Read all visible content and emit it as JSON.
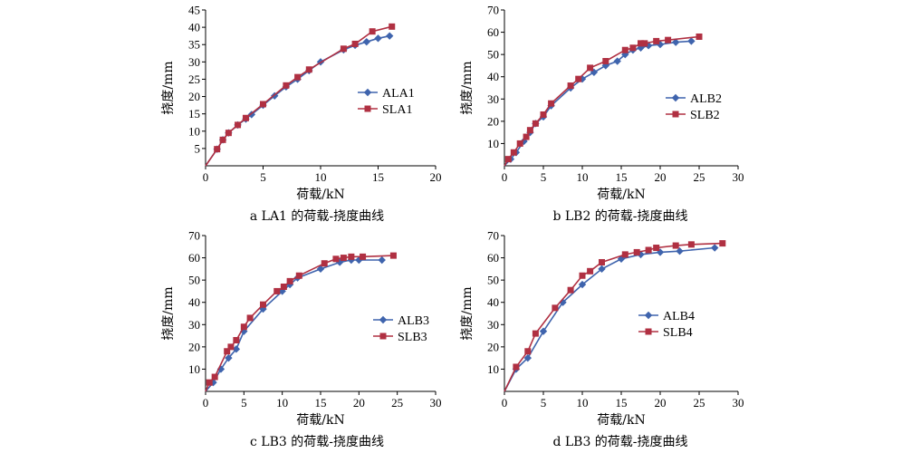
{
  "colors": {
    "a_series": "#3f64ad",
    "s_series": "#b03042",
    "axis": "#000000"
  },
  "chart_data": [
    {
      "type": "line",
      "caption": "a  LA1 的荷载-挠度曲线",
      "xlabel": "荷载/kN",
      "ylabel": "挠度/mm",
      "xlim": [
        0,
        20
      ],
      "ylim": [
        0,
        45
      ],
      "xticks": [
        "0",
        "5",
        "10",
        "15",
        "20"
      ],
      "yticks": [
        "5",
        "10",
        "15",
        "20",
        "25",
        "30",
        "35",
        "40",
        "45"
      ],
      "grid": false,
      "legend_position": "right-middle",
      "series": [
        {
          "name": "ALA1",
          "marker": "diamond",
          "x": [
            0,
            1,
            1.5,
            2,
            2.8,
            3.5,
            4,
            5,
            6,
            7,
            8,
            9,
            10,
            12,
            13,
            14,
            15,
            16
          ],
          "y": [
            0,
            4.8,
            7.5,
            9.5,
            11.8,
            13.5,
            14.8,
            17.5,
            20.2,
            22.8,
            25,
            27.5,
            30,
            33.5,
            34.8,
            35.8,
            36.8,
            37.5
          ]
        },
        {
          "name": "SLA1",
          "marker": "square",
          "x": [
            0,
            1,
            1.5,
            2,
            2.8,
            3.5,
            5,
            7,
            8,
            9,
            12,
            13,
            14.5,
            16.2
          ],
          "y": [
            0,
            4.8,
            7.5,
            9.5,
            11.8,
            13.8,
            17.8,
            23.2,
            25.6,
            27.8,
            33.8,
            35.2,
            38.8,
            40.2
          ]
        }
      ]
    },
    {
      "type": "line",
      "caption": "b  LB2 的荷载-挠度曲线",
      "xlabel": "荷载/kN",
      "ylabel": "挠度/mm",
      "xlim": [
        0,
        30
      ],
      "ylim": [
        0,
        70
      ],
      "xticks": [
        "0",
        "5",
        "10",
        "15",
        "20",
        "25",
        "30"
      ],
      "yticks": [
        "10",
        "20",
        "30",
        "40",
        "50",
        "60",
        "70"
      ],
      "grid": false,
      "legend_position": "right-middle",
      "series": [
        {
          "name": "ALB2",
          "marker": "diamond",
          "x": [
            0,
            0.8,
            1.5,
            2.5,
            3.3,
            4,
            5,
            6,
            8.5,
            10,
            11.5,
            13,
            14.5,
            15.5,
            16.5,
            17.5,
            18.5,
            20,
            22,
            24
          ],
          "y": [
            0,
            3,
            6,
            11,
            15,
            19,
            22,
            27,
            35,
            39,
            42,
            45,
            47,
            50,
            52,
            53,
            54,
            54.5,
            55.5,
            56
          ]
        },
        {
          "name": "SLB2",
          "marker": "square",
          "x": [
            0,
            0.5,
            1.2,
            2,
            2.8,
            3.3,
            4,
            5,
            6,
            8.5,
            9.5,
            11,
            13,
            15.5,
            16.5,
            17.5,
            18,
            19.5,
            21,
            25
          ],
          "y": [
            0,
            3,
            6,
            10,
            13,
            16,
            19,
            23,
            28,
            36,
            39,
            44,
            47,
            52,
            53,
            55,
            55,
            56,
            56.5,
            58
          ]
        }
      ]
    },
    {
      "type": "line",
      "caption": "c  LB3 的荷载-挠度曲线",
      "xlabel": "荷载/kN",
      "ylabel": "挠度/mm",
      "xlim": [
        0,
        30
      ],
      "ylim": [
        0,
        70
      ],
      "xticks": [
        "0",
        "5",
        "10",
        "15",
        "20",
        "25",
        "30"
      ],
      "yticks": [
        "10",
        "20",
        "30",
        "40",
        "50",
        "60",
        "70"
      ],
      "grid": false,
      "legend_position": "right-middle",
      "series": [
        {
          "name": "ALB3",
          "marker": "diamond",
          "x": [
            0,
            1,
            2,
            3,
            4,
            5,
            7.5,
            10,
            11,
            12,
            15,
            17.5,
            19,
            20,
            23
          ],
          "y": [
            0,
            4,
            10,
            15,
            19,
            27,
            37,
            45,
            48,
            51,
            55,
            58,
            59,
            59,
            59
          ]
        },
        {
          "name": "SLB3",
          "marker": "square",
          "x": [
            0,
            0.5,
            1.2,
            2.8,
            3.3,
            4,
            5,
            5.8,
            7.5,
            9.3,
            10.2,
            11,
            12.2,
            15.5,
            17,
            18,
            19,
            20.5,
            24.5
          ],
          "y": [
            0,
            4,
            6.5,
            18,
            20,
            23,
            29,
            33,
            39,
            45,
            47,
            49.5,
            52,
            57.5,
            59.5,
            60,
            60.5,
            60.5,
            61
          ]
        }
      ]
    },
    {
      "type": "line",
      "caption": "d  LB3 的荷载-挠度曲线",
      "xlabel": "荷载/kN",
      "ylabel": "挠度/mm",
      "xlim": [
        0,
        30
      ],
      "ylim": [
        0,
        70
      ],
      "xticks": [
        "0",
        "5",
        "10",
        "15",
        "20",
        "25",
        "30"
      ],
      "yticks": [
        "10",
        "20",
        "30",
        "40",
        "50",
        "60",
        "70"
      ],
      "grid": false,
      "legend_position": "right-middle",
      "series": [
        {
          "name": "ALB4",
          "marker": "diamond",
          "x": [
            0,
            1.5,
            3,
            5,
            7.5,
            10,
            12.5,
            15,
            17.5,
            20,
            22.5,
            27
          ],
          "y": [
            0,
            10,
            15,
            27,
            40,
            48,
            55,
            59.5,
            61.5,
            62.5,
            63,
            64.5
          ]
        },
        {
          "name": "SLB4",
          "marker": "square",
          "x": [
            0,
            1.5,
            3,
            4,
            6.5,
            8.5,
            10,
            11,
            12.5,
            15.5,
            17,
            18.5,
            19.5,
            22,
            24,
            28
          ],
          "y": [
            0,
            11,
            18,
            26,
            37.5,
            45.5,
            52,
            54,
            58,
            61.5,
            62.5,
            63.5,
            64.5,
            65.5,
            66,
            66.5
          ]
        }
      ]
    }
  ]
}
